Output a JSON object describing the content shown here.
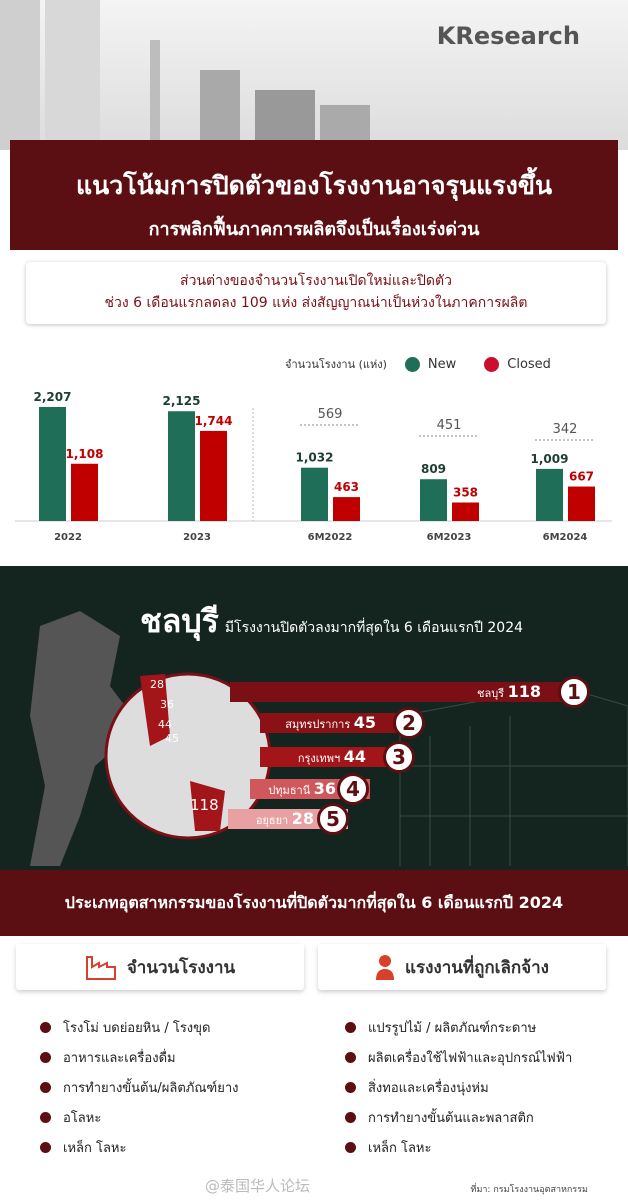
{
  "brand": {
    "logo_text": "KResearch"
  },
  "header": {
    "title": "แนวโน้มการปิดตัวของโรงงานอาจรุนแรงขึ้น",
    "subtitle": "การพลิกฟื้นภาคการผลิตจึงเป็นเรื่องเร่งด่วน"
  },
  "summary": {
    "line1": "ส่วนต่างของจำนวนโรงงานเปิดใหม่และปิดตัว",
    "line2": "ช่วง 6 เดือนแรกลดลง 109 แห่ง ส่งสัญญาณน่าเป็นห่วงในภาคการผลิต"
  },
  "colors": {
    "new": "#1e6e58",
    "closed": "#c00000",
    "dark_red": "#5c0f12",
    "dark_green": "#142520"
  },
  "chart_data": {
    "type": "bar",
    "unit_label": "จำนวนโรงงาน (แห่ง)",
    "categories": [
      "2022",
      "2023",
      "6M2022",
      "6M2023",
      "6M2024"
    ],
    "series": [
      {
        "name": "New",
        "values": [
          2207,
          2125,
          1032,
          809,
          1009
        ],
        "labels": [
          "2,207",
          "2,125",
          "1,032",
          "809",
          "1,009"
        ]
      },
      {
        "name": "Closed",
        "values": [
          1108,
          1744,
          463,
          358,
          667
        ],
        "labels": [
          "1,108",
          "1,744",
          "463",
          "358",
          "667"
        ]
      }
    ],
    "gap_annotations": [
      {
        "category": "6M2022",
        "value": "569"
      },
      {
        "category": "6M2023",
        "value": "451"
      },
      {
        "category": "6M2024",
        "value": "342"
      }
    ],
    "legend": "top-right",
    "grid": false
  },
  "provinces": {
    "title_big": "ชลบุรี",
    "title_rest": "มีโรงงานปิดตัวลงมากที่สุดใน 6 เดือนแรกปี 2024",
    "ranking": [
      {
        "rank": "1",
        "name": "ชลบุรี",
        "value": "118"
      },
      {
        "rank": "2",
        "name": "สมุทรปราการ",
        "value": "45"
      },
      {
        "rank": "3",
        "name": "กรุงเทพฯ",
        "value": "44"
      },
      {
        "rank": "4",
        "name": "ปทุมธานี",
        "value": "36"
      },
      {
        "rank": "5",
        "name": "อยุธยา",
        "value": "28"
      }
    ]
  },
  "industries": {
    "title": "ประเภทอุตสาหกรรมของโรงงานที่ปิดตัวมากที่สุดใน 6 เดือนแรกปี 2024",
    "factories": {
      "heading": "จำนวนโรงงาน",
      "icon": "factory-icon",
      "items": [
        "โรงโม่ บดย่อยหิน / โรงขุด",
        "อาหารและเครื่องดื่ม",
        "การทำยางขั้นต้น/ผลิตภัณฑ์ยาง",
        "อโลหะ",
        "เหล็ก โลหะ"
      ]
    },
    "workers": {
      "heading": "แรงงานที่ถูกเลิกจ้าง",
      "icon": "worker-icon",
      "items": [
        "แปรรูปไม้ / ผลิตภัณฑ์กระดาษ",
        "ผลิตเครื่องใช้ไฟฟ้าและอุปกรณ์ไฟฟ้า",
        "สิ่งทอและเครื่องนุ่งห่ม",
        "การทำยางขั้นต้นและพลาสติก",
        "เหล็ก โลหะ"
      ]
    }
  },
  "source": "ที่มา: กรมโรงงานอุตสาหกรรม",
  "watermark": "@泰国华人论坛"
}
